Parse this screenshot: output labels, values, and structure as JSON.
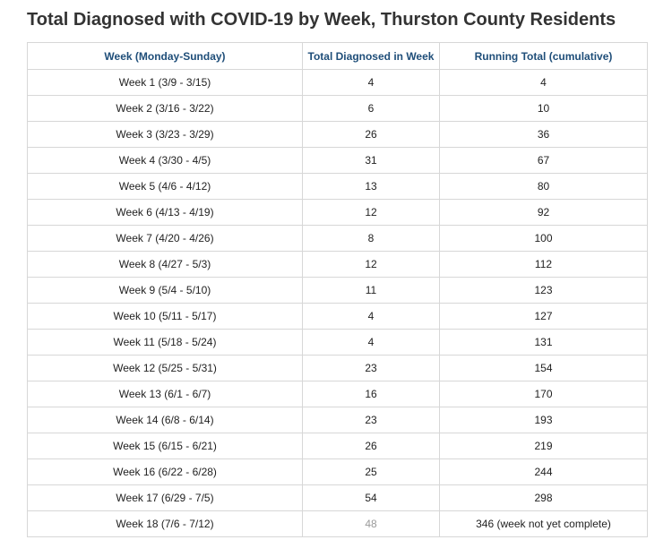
{
  "title": "Total Diagnosed with COVID-19 by Week, Thurston County Residents",
  "table": {
    "headers": [
      "Week (Monday-Sunday)",
      "Total Diagnosed in Week",
      "Running Total (cumulative)"
    ],
    "rows": [
      {
        "week": "Week 1 (3/9 - 3/15)",
        "diagnosed": "4",
        "running": "4"
      },
      {
        "week": "Week 2 (3/16 - 3/22)",
        "diagnosed": "6",
        "running": "10"
      },
      {
        "week": "Week 3 (3/23 - 3/29)",
        "diagnosed": "26",
        "running": "36"
      },
      {
        "week": "Week 4 (3/30 - 4/5)",
        "diagnosed": "31",
        "running": "67"
      },
      {
        "week": "Week 5 (4/6 - 4/12)",
        "diagnosed": "13",
        "running": "80"
      },
      {
        "week": "Week 6 (4/13 - 4/19)",
        "diagnosed": "12",
        "running": "92"
      },
      {
        "week": "Week 7 (4/20 - 4/26)",
        "diagnosed": "8",
        "running": "100"
      },
      {
        "week": "Week 8 (4/27 - 5/3)",
        "diagnosed": "12",
        "running": "112"
      },
      {
        "week": "Week 9 (5/4 - 5/10)",
        "diagnosed": "11",
        "running": "123"
      },
      {
        "week": "Week 10 (5/11 - 5/17)",
        "diagnosed": "4",
        "running": "127"
      },
      {
        "week": "Week 11 (5/18 - 5/24)",
        "diagnosed": "4",
        "running": "131"
      },
      {
        "week": "Week 12 (5/25 - 5/31)",
        "diagnosed": "23",
        "running": "154"
      },
      {
        "week": "Week 13 (6/1 - 6/7)",
        "diagnosed": "16",
        "running": "170"
      },
      {
        "week": "Week 14 (6/8 - 6/14)",
        "diagnosed": "23",
        "running": "193"
      },
      {
        "week": "Week 15 (6/15 - 6/21)",
        "diagnosed": "26",
        "running": "219"
      },
      {
        "week": "Week 16 (6/22 - 6/28)",
        "diagnosed": "25",
        "running": "244"
      },
      {
        "week": "Week 17 (6/29 - 7/5)",
        "diagnosed": "54",
        "running": "298"
      },
      {
        "week": "Week 18 (7/6 - 7/12)",
        "diagnosed": "48",
        "running": "346 (week not yet complete)",
        "incomplete": true
      }
    ]
  },
  "colors": {
    "header_text": "#1f4e79",
    "title_text": "#333333",
    "incomplete_text": "#9a9a9a",
    "border": "#d7d7d7"
  }
}
